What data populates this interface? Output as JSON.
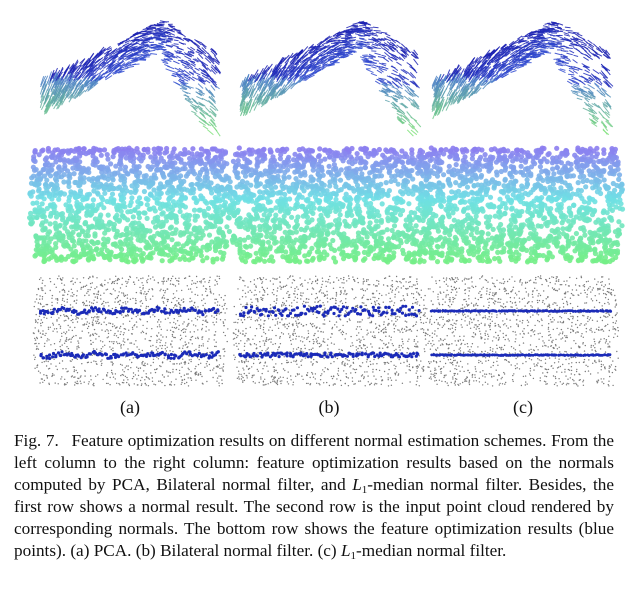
{
  "figure": {
    "columns": [
      {
        "label": "(a)",
        "scheme": "PCA"
      },
      {
        "label": "(b)",
        "scheme": "Bilateral normal filter"
      },
      {
        "label": "(c)",
        "scheme": "L1-median normal filter"
      }
    ],
    "colors": {
      "normal_dark": "#1a1fb0",
      "normal_mid": "#3f63e0",
      "normal_light": "#7fe27a",
      "cloud_top": "#8c7cf0",
      "cloud_mid": "#6fe0e4",
      "cloud_bottom": "#74ee86",
      "gray_points": "#7a7a7a",
      "feature_blue": "#1b2bb8"
    }
  },
  "caption": {
    "fig_num": "Fig. 7.",
    "part1": "Feature optimization results on different normal estimation schemes. From the left column to the right column: feature optimization results based on the normals computed by PCA, Bilateral normal filter, and ",
    "l1_a": "L",
    "l1_a_sub": "1",
    "part2": "-median normal filter. Besides, the first row shows a normal result. The second row is the input point cloud rendered by corresponding normals. The bottom row shows the feature optimization results (blue points). (a) PCA. (b) Bilateral normal filter. (c) ",
    "l1_b": "L",
    "l1_b_sub": "1",
    "part3": "-median normal filter."
  }
}
